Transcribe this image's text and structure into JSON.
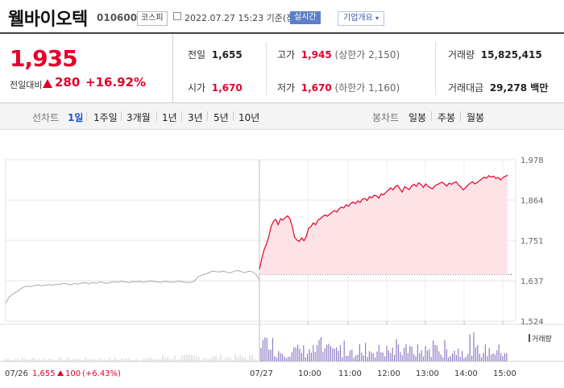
{
  "header": {
    "title": "웰바이오텍",
    "code": "010600",
    "market": "코스피",
    "datetime": "2022.07.27 15:23 기준(장중)",
    "realtime": "실시간",
    "corp_info": "기업개요"
  },
  "quote": {
    "price": "1,935",
    "change_label": "전일대비",
    "change": "280",
    "change_pct": "+16.92%"
  },
  "stats": {
    "prev": {
      "label": "전일",
      "value": "1,655"
    },
    "high": {
      "label": "고가",
      "value": "1,945",
      "sub": "(상한가 2,150)"
    },
    "volume": {
      "label": "거래량",
      "value": "15,825,415"
    },
    "open": {
      "label": "시가",
      "value": "1,670"
    },
    "low": {
      "label": "저가",
      "value": "1,670",
      "sub": "(하한가 1,160)"
    },
    "amount": {
      "label": "거래대금",
      "value": "29,278 백만"
    }
  },
  "nav": {
    "line_label": "선차트",
    "periods": [
      "1일",
      "1주일",
      "3개월",
      "1년",
      "3년",
      "5년",
      "10년"
    ],
    "selected": "1일",
    "candle_label": "봉차트",
    "candles": [
      "일봉",
      "주봉",
      "월봉"
    ]
  },
  "colors": {
    "up": "#e4002b",
    "down": "#3a5ba8",
    "prevline": "#aaaaaa",
    "volume": "#8e7cc3"
  },
  "chart_data": {
    "type": "line",
    "y_ticks": [
      "1,978",
      "1,864",
      "1,751",
      "1,637",
      "1,524"
    ],
    "ylim": [
      1524,
      1978
    ],
    "x_ticks": [
      "07/27",
      "10:00",
      "11:00",
      "12:00",
      "13:00",
      "14:00",
      "15:00"
    ],
    "prev_day": {
      "label": "07/26",
      "close": "1,655",
      "change": "100",
      "change_pct": "(+6.43%)"
    },
    "volume_label": "거래량",
    "prev_close": 1655,
    "prev_series": [
      1574,
      1592,
      1600,
      1606,
      1614,
      1620,
      1622,
      1621,
      1624,
      1626,
      1623,
      1625,
      1627,
      1625,
      1628,
      1627,
      1630,
      1628,
      1626,
      1630,
      1628,
      1631,
      1632,
      1629,
      1633,
      1630,
      1634,
      1632,
      1630,
      1633,
      1635,
      1633,
      1636,
      1634,
      1632,
      1635,
      1634,
      1636,
      1633,
      1635,
      1637,
      1635,
      1634,
      1633,
      1636,
      1634,
      1633,
      1635,
      1636,
      1634,
      1632,
      1633,
      1636,
      1648,
      1653,
      1656,
      1660,
      1664,
      1663,
      1662,
      1665,
      1661,
      1660,
      1664,
      1666,
      1663,
      1660,
      1664,
      1663,
      1656,
      1641
    ],
    "today_series": [
      1670,
      1700,
      1725,
      1740,
      1762,
      1790,
      1805,
      1810,
      1795,
      1812,
      1808,
      1815,
      1820,
      1812,
      1790,
      1760,
      1752,
      1748,
      1758,
      1750,
      1762,
      1785,
      1790,
      1800,
      1795,
      1808,
      1812,
      1818,
      1823,
      1819,
      1825,
      1830,
      1835,
      1831,
      1839,
      1845,
      1842,
      1851,
      1847,
      1855,
      1859,
      1854,
      1862,
      1858,
      1867,
      1869,
      1863,
      1874,
      1871,
      1878,
      1876,
      1870,
      1882,
      1879,
      1886,
      1892,
      1899,
      1893,
      1902,
      1906,
      1896,
      1887,
      1902,
      1898,
      1894,
      1904,
      1909,
      1903,
      1913,
      1908,
      1900,
      1910,
      1903,
      1899,
      1896,
      1905,
      1908,
      1912,
      1915,
      1910,
      1904,
      1912,
      1909,
      1913,
      1916,
      1907,
      1902,
      1893,
      1899,
      1906,
      1912,
      1916,
      1910,
      1914,
      1919,
      1924,
      1929,
      1926,
      1933,
      1929,
      1932,
      1925,
      1928,
      1921,
      1928,
      1931,
      1935
    ]
  }
}
